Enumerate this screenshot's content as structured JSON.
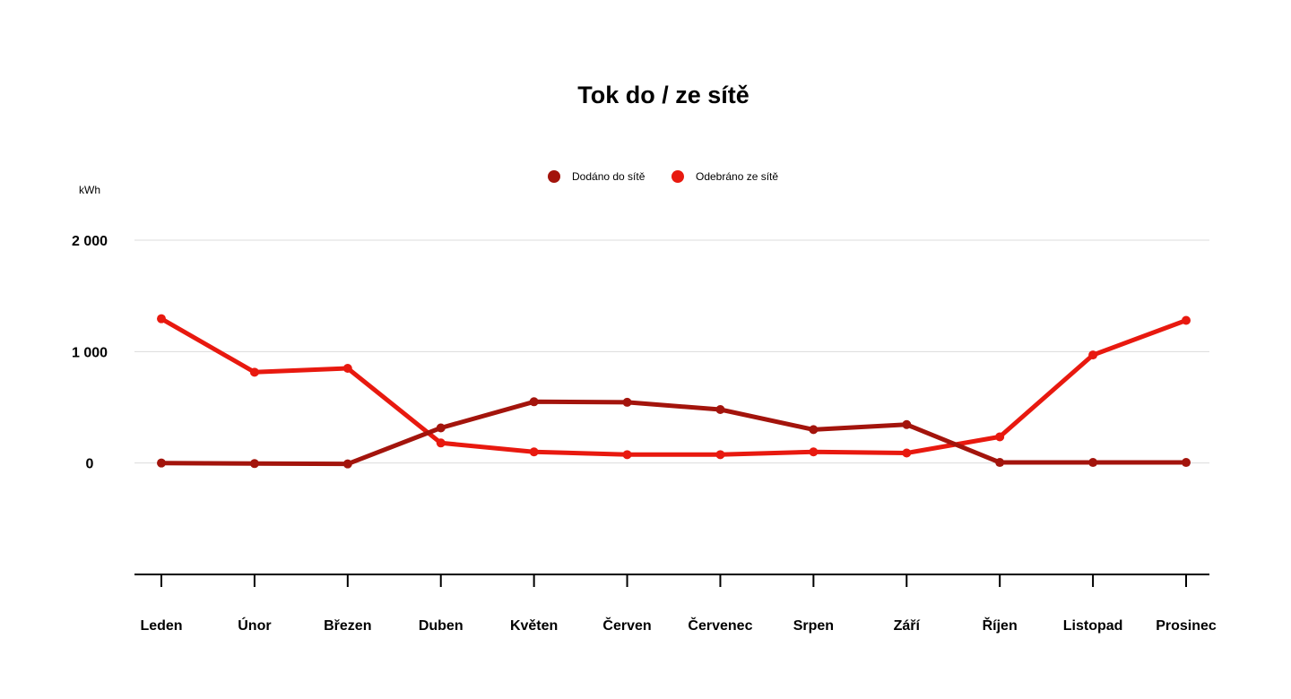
{
  "chart_data": {
    "type": "line",
    "title": "Tok do / ze sítě",
    "ylabel": "kWh",
    "xlabel": "",
    "categories": [
      "Leden",
      "Únor",
      "Březen",
      "Duben",
      "Květen",
      "Červen",
      "Červenec",
      "Srpen",
      "Září",
      "Říjen",
      "Listopad",
      "Prosinec"
    ],
    "y_ticks": [
      {
        "value": 2000,
        "label": "2 000"
      },
      {
        "value": 1000,
        "label": "1 000"
      },
      {
        "value": 0,
        "label": "0"
      }
    ],
    "ylim": [
      -1000,
      2000
    ],
    "grid": true,
    "legend_position": "top-center",
    "series": [
      {
        "name": "Dodáno do sítě",
        "color": "#a3140c",
        "values": [
          0,
          -5,
          -8,
          315,
          550,
          545,
          480,
          300,
          345,
          5,
          5,
          5
        ]
      },
      {
        "name": "Odebráno ze sítě",
        "color": "#e8190f",
        "values": [
          1295,
          815,
          850,
          180,
          100,
          75,
          75,
          100,
          90,
          235,
          970,
          1280
        ]
      }
    ]
  }
}
